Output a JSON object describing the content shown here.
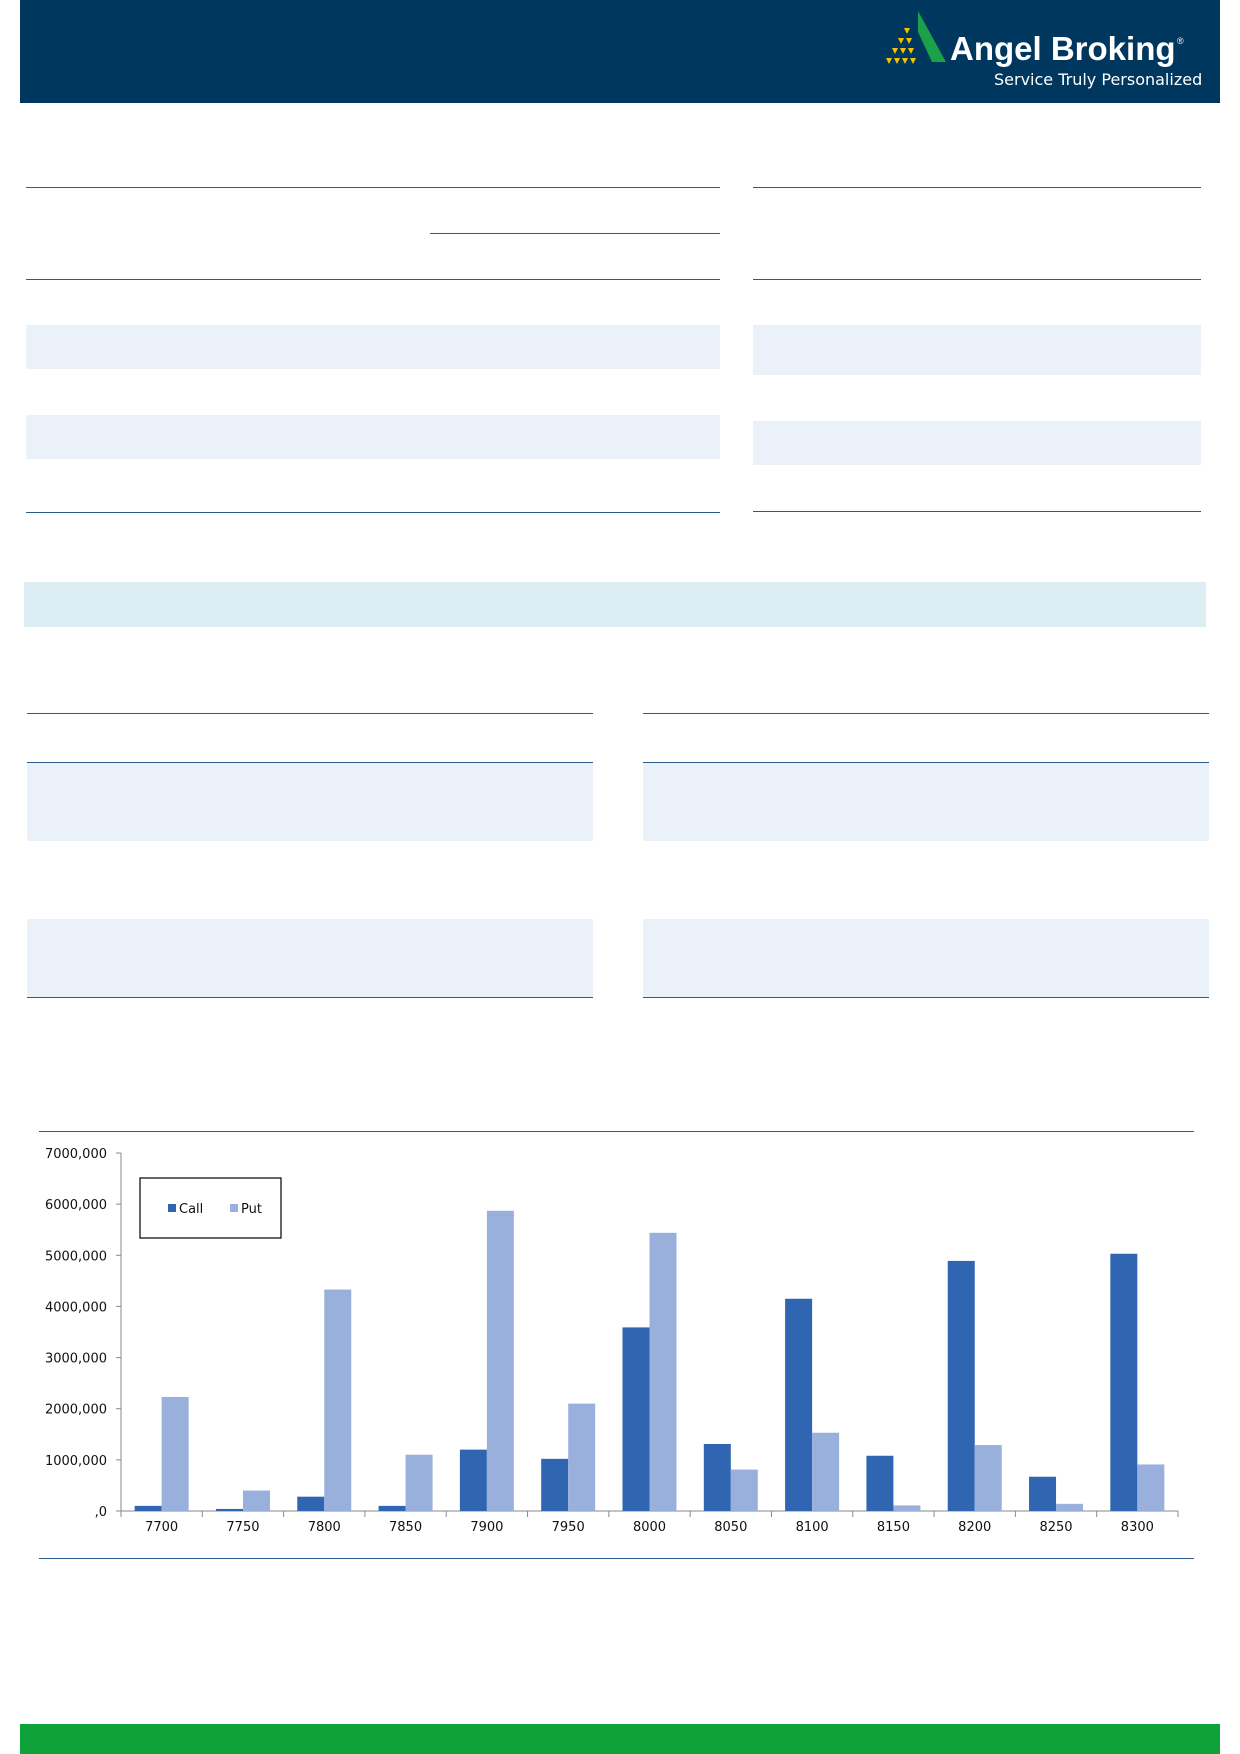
{
  "brand": {
    "name": "Angel Broking",
    "registered_mark": "®",
    "tagline": "Service Truly Personalized",
    "colors": {
      "header": "#00375f",
      "accent_green": "#0fa23a",
      "logo_green": "#1aa14a",
      "logo_yellow": "#f5c400"
    }
  },
  "chart_data": {
    "type": "bar",
    "categories": [
      "7700",
      "7750",
      "7800",
      "7850",
      "7900",
      "7950",
      "8000",
      "8050",
      "8100",
      "8150",
      "8200",
      "8250",
      "8300"
    ],
    "series": [
      {
        "name": "Call",
        "color": "#2f65b1",
        "values": [
          100000,
          40000,
          280000,
          100000,
          1200000,
          1020000,
          3590000,
          1310000,
          4150000,
          1080000,
          4890000,
          670000,
          5030000
        ]
      },
      {
        "name": "Put",
        "color": "#9ab0dc",
        "values": [
          2230000,
          400000,
          4330000,
          1100000,
          5870000,
          2100000,
          5440000,
          810000,
          1530000,
          110000,
          1290000,
          140000,
          910000
        ]
      }
    ],
    "y_ticks": [
      ",0",
      "1000,000",
      "2000,000",
      "3000,000",
      "4000,000",
      "5000,000",
      "6000,000",
      "7000,000"
    ],
    "ylim": [
      0,
      7000000
    ],
    "legend_position": "top-left",
    "grid": false
  }
}
